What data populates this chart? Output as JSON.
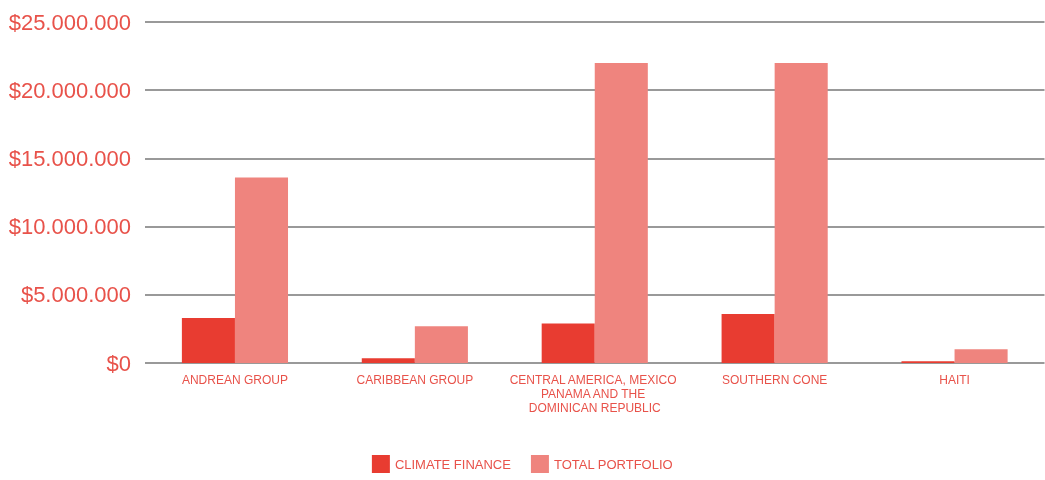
{
  "chart_data": {
    "type": "bar",
    "categories": [
      "ANDREAN GROUP",
      "CARIBBEAN GROUP",
      "CENTRAL AMERICA, MEXICO PANAMA AND THE DOMINICAN REPUBLIC",
      "SOUTHERN CONE",
      "HAITI"
    ],
    "series": [
      {
        "name": "CLIMATE FINANCE",
        "color": "#e83c31",
        "values": [
          3300000,
          350000,
          2900000,
          3600000,
          120000
        ]
      },
      {
        "name": "TOTAL PORTFOLIO",
        "color": "#ef847e",
        "values": [
          13600000,
          2700000,
          22000000,
          22000000,
          1000000
        ]
      }
    ],
    "ylim": [
      0,
      25000000
    ],
    "yticks": [
      {
        "value": 0,
        "label": "$0"
      },
      {
        "value": 5000000,
        "label": "$5.000.000"
      },
      {
        "value": 10000000,
        "label": "$10.000.000"
      },
      {
        "value": 15000000,
        "label": "$15.000.000"
      },
      {
        "value": 20000000,
        "label": "$20.000.000"
      },
      {
        "value": 25000000,
        "label": "$25.000.000"
      }
    ],
    "grid": "y",
    "legend": "bottom"
  }
}
